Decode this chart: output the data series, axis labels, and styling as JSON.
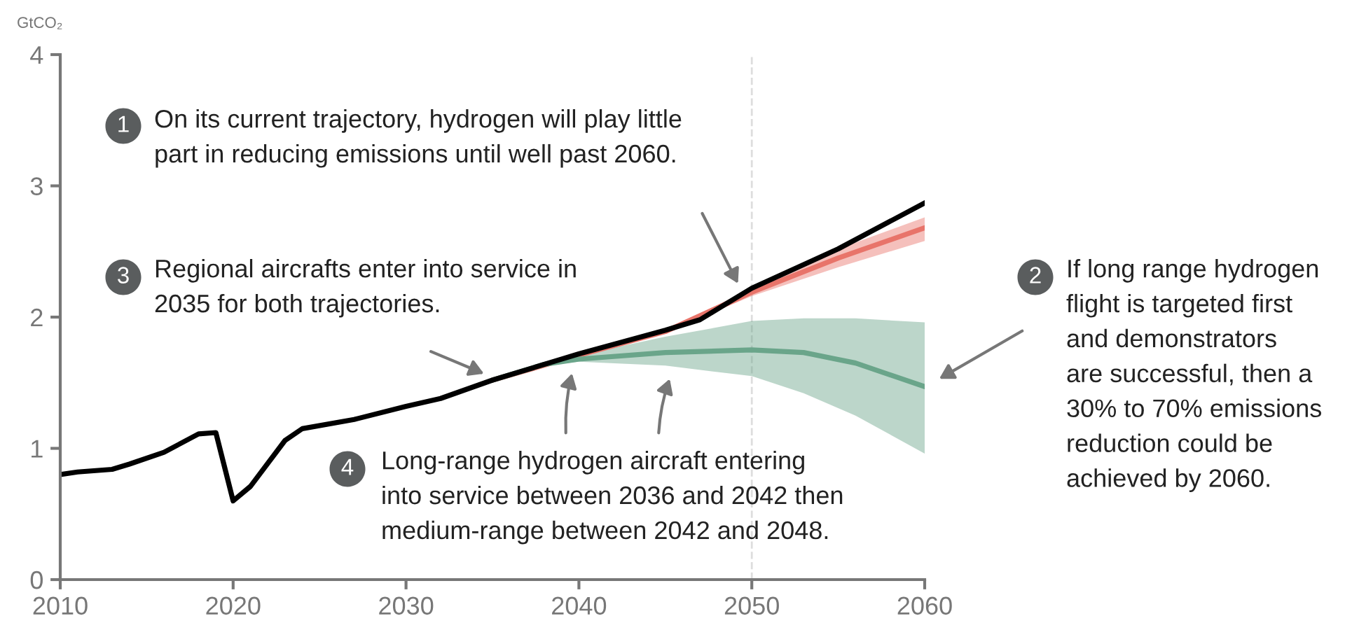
{
  "chart_data": {
    "type": "line",
    "ylabel": "GtCO₂",
    "xlim": [
      2010,
      2060
    ],
    "ylim": [
      0,
      4
    ],
    "xticks": [
      2010,
      2020,
      2030,
      2040,
      2050,
      2060
    ],
    "yticks": [
      0,
      1,
      2,
      3,
      4
    ],
    "series": [
      {
        "color": "#e8746a",
        "x": [
          2035,
          2040,
          2045,
          2050,
          2055,
          2060
        ],
        "values": [
          1.52,
          1.71,
          1.89,
          2.19,
          2.45,
          2.68
        ],
        "lower": [
          1.52,
          1.71,
          1.88,
          2.16,
          2.38,
          2.58
        ],
        "upper": [
          1.52,
          1.71,
          1.9,
          2.22,
          2.52,
          2.76
        ]
      },
      {
        "color": "#6aa58a",
        "x": [
          2035,
          2038,
          2040,
          2045,
          2050,
          2053,
          2056,
          2060
        ],
        "values": [
          1.52,
          1.64,
          1.68,
          1.73,
          1.75,
          1.73,
          1.65,
          1.47
        ],
        "lower": [
          1.52,
          1.63,
          1.66,
          1.63,
          1.55,
          1.42,
          1.25,
          0.96
        ],
        "upper": [
          1.52,
          1.66,
          1.71,
          1.85,
          1.97,
          1.99,
          1.99,
          1.96
        ]
      },
      {
        "color": "#000000",
        "x": [
          2010,
          2011,
          2013,
          2014,
          2016,
          2018,
          2019,
          2020,
          2021,
          2023,
          2024,
          2027,
          2030,
          2032,
          2035,
          2040,
          2045,
          2047,
          2050,
          2055,
          2060
        ],
        "values": [
          0.8,
          0.82,
          0.84,
          0.88,
          0.97,
          1.11,
          1.12,
          0.6,
          0.71,
          1.06,
          1.15,
          1.22,
          1.32,
          1.38,
          1.52,
          1.72,
          1.9,
          1.98,
          2.22,
          2.52,
          2.87
        ]
      }
    ],
    "ref_lines": [
      {
        "axis": "x",
        "value": 2050,
        "color": "#dddddd",
        "line_style": "dashed"
      }
    ],
    "annotations": [
      "1",
      "On its current trajectory, hydrogen will play little\npart in reducing emissions until well past 2060.",
      "2",
      "If long range hydrogen\nflight is targeted first\nand demonstrators\nare successful, then a\n30% to 70% emissions\nreduction could be\nachieved by 2060.",
      "3",
      "Regional aircrafts enter into service in\n2035 for both trajectories.",
      "4",
      "Long-range hydrogen aircraft entering\ninto service between 2036 and 2042 then\nmedium-range between 2042 and 2048."
    ]
  }
}
